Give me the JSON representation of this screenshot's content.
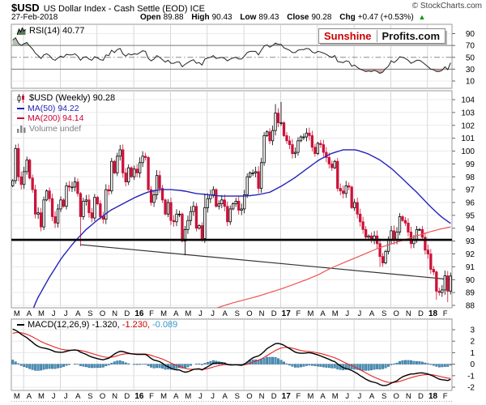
{
  "header": {
    "symbol": "$USD",
    "title": "US Dollar Index - Cash Settle (EOD) ICE",
    "copyright": "© StockCharts.com",
    "date": "27-Feb-2018",
    "open_label": "Open",
    "open": "89.88",
    "high_label": "High",
    "high": "90.43",
    "low_label": "Low",
    "low": "89.43",
    "close_label": "Close",
    "close": "90.28",
    "chg_label": "Chg",
    "chg": "+0.47 (+0.53%)",
    "up_arrow": "▲",
    "up_color": "#009900"
  },
  "logo": {
    "part1": "Sunshine",
    "part2": "Profits.com",
    "part1_color": "#cc0000"
  },
  "rsi_panel": {
    "label": "RSI(14) 40.77",
    "ticks": [
      90,
      70,
      50,
      30,
      10
    ]
  },
  "main_panel": {
    "legend": [
      {
        "label": "$USD (Weekly) 90.28",
        "color": "#000000",
        "icon": "candles"
      },
      {
        "label": "MA(50) 94.22",
        "color": "#2222bb",
        "icon": "dash"
      },
      {
        "label": "MA(200) 94.14",
        "color": "#cc0033",
        "icon": "dash"
      },
      {
        "label": "Volume undef",
        "color": "#808080",
        "icon": "bars"
      }
    ],
    "ticks": [
      104,
      103,
      102,
      101,
      100,
      99,
      98,
      97,
      96,
      95,
      94,
      93,
      92,
      91,
      90,
      89,
      88
    ]
  },
  "macd_panel": {
    "name": "MACD(12,26,9)",
    "values": [
      {
        "text": " -1.320,",
        "color": "#000000"
      },
      {
        "text": " -1.230,",
        "color": "#cc0000"
      },
      {
        "text": " -0.089",
        "color": "#3399cc"
      }
    ],
    "ticks": [
      3,
      2,
      1,
      0,
      -1,
      -2
    ]
  },
  "months": [
    "M",
    "A",
    "M",
    "J",
    "J",
    "A",
    "S",
    "O",
    "N",
    "D",
    "16",
    "F",
    "M",
    "A",
    "M",
    "J",
    "J",
    "A",
    "S",
    "O",
    "N",
    "D",
    "17",
    "F",
    "M",
    "A",
    "M",
    "J",
    "J",
    "A",
    "S",
    "O",
    "N",
    "D",
    "18",
    "F"
  ],
  "colors": {
    "candle_down": "#cc1239",
    "candle_up_fill": "#ffffff",
    "candle_up_stroke": "#000000",
    "ma50": "#2424bb",
    "ma200": "#ee5555",
    "support": "#000000",
    "trendline": "#333333",
    "rsi_line": "#222222",
    "rsi_fill_over": "#6f8f6f",
    "rsi_fill_under": "#b96a6a",
    "macd_line": "#000000",
    "macd_signal": "#e62222",
    "hist_fill": "#4e97bf",
    "hist_stroke": "#27638b",
    "grid": "#e4e4e4",
    "vgrid": "#cccccc",
    "band_line": "#777777",
    "mid_line": "#888888",
    "border": "#999999",
    "tick": "#666666"
  },
  "chart_data": [
    {
      "type": "line",
      "name": "RSI(14) weekly",
      "last": 40.77,
      "overbought": 70,
      "oversold": 30,
      "ylim": [
        10,
        90
      ],
      "values": [
        79,
        83,
        74,
        70,
        73,
        75,
        69,
        64,
        57,
        53,
        48,
        54,
        56,
        53,
        47,
        45,
        49,
        52,
        50,
        55,
        54,
        54,
        56,
        52,
        45,
        50,
        51,
        47,
        45,
        51,
        49,
        46,
        45,
        54,
        53,
        62,
        58,
        63,
        65,
        56,
        52,
        56,
        54,
        56,
        55,
        58,
        61,
        60,
        48,
        44,
        47,
        53,
        50,
        46,
        42,
        45,
        40,
        40,
        42,
        42,
        34,
        38,
        41,
        44,
        46,
        40,
        41,
        37,
        47,
        49,
        50,
        53,
        48,
        49,
        50,
        48,
        44,
        47,
        49,
        50,
        47,
        47,
        52,
        58,
        60,
        60,
        60,
        54,
        62,
        69,
        71,
        67,
        70,
        74,
        72,
        72,
        66,
        64,
        62,
        58,
        58,
        62,
        63,
        63,
        65,
        64,
        59,
        57,
        60,
        59,
        57,
        55,
        52,
        50,
        53,
        43,
        42,
        41,
        44,
        43,
        35,
        37,
        33,
        30,
        28,
        26,
        27,
        26,
        28,
        26,
        23,
        25,
        31,
        35,
        44,
        41,
        45,
        51,
        50,
        48,
        45,
        40,
        42,
        45,
        45,
        42,
        38,
        34,
        30,
        29,
        26,
        26,
        28,
        34,
        29,
        40.77
      ]
    },
    {
      "type": "candlestick",
      "name": "$USD US Dollar Index weekly",
      "last": 90.28,
      "ylim": [
        88,
        104
      ],
      "x_range": "Mar-2015 to Feb-2018",
      "first_open": 97.3,
      "closes": [
        97.7,
        100.2,
        98.0,
        97.4,
        98.4,
        99.3,
        97.9,
        97.0,
        95.1,
        95.2,
        94.1,
        96.2,
        96.9,
        96.3,
        94.9,
        94.4,
        95.5,
        96.2,
        95.7,
        97.3,
        97.2,
        97.2,
        97.6,
        96.7,
        94.9,
        96.1,
        96.2,
        95.2,
        94.8,
        96.4,
        95.9,
        94.9,
        94.7,
        97.0,
        96.9,
        99.2,
        98.3,
        99.6,
        100.1,
        98.3,
        97.6,
        98.7,
        98.0,
        98.6,
        98.3,
        99.1,
        99.6,
        99.5,
        97.0,
        96.0,
        96.6,
        98.1,
        97.1,
        96.2,
        95.1,
        96.0,
        94.6,
        94.5,
        95.1,
        95.1,
        93.0,
        93.9,
        94.6,
        95.3,
        95.7,
        94.0,
        94.2,
        93.2,
        95.6,
        96.3,
        96.6,
        97.0,
        95.7,
        95.9,
        96.2,
        95.7,
        94.5,
        95.5,
        95.9,
        96.1,
        95.4,
        95.5,
        96.6,
        98.0,
        98.3,
        98.3,
        98.4,
        97.1,
        99.1,
        101.2,
        101.5,
        100.8,
        101.6,
        102.95,
        102.2,
        102.2,
        101.2,
        100.8,
        100.5,
        99.8,
        99.9,
        100.8,
        101.1,
        101.1,
        101.4,
        101.2,
        100.3,
        99.8,
        100.6,
        100.5,
        99.9,
        99.5,
        99.0,
        98.7,
        99.2,
        97.1,
        96.9,
        96.7,
        97.3,
        97.2,
        95.6,
        96.0,
        95.1,
        94.5,
        93.9,
        93.3,
        93.4,
        93.1,
        93.4,
        92.8,
        91.8,
        91.3,
        92.2,
        93.1,
        93.8,
        93.1,
        93.7,
        94.9,
        94.6,
        94.4,
        93.7,
        92.8,
        93.1,
        93.9,
        93.9,
        93.3,
        92.3,
        92.0,
        90.8,
        90.6,
        89.1,
        89.0,
        89.2,
        90.3,
        89.1,
        90.28
      ],
      "wick_overrides": [
        {
          "i": 1,
          "high": 100.5
        },
        {
          "i": 24,
          "low": 92.6
        },
        {
          "i": 61,
          "low": 91.9
        },
        {
          "i": 68,
          "high": 96.7
        },
        {
          "i": 93,
          "high": 103.65
        },
        {
          "i": 95,
          "high": 103.82
        },
        {
          "i": 130,
          "low": 91.0
        },
        {
          "i": 131,
          "low": 91.0
        },
        {
          "i": 150,
          "low": 88.44
        },
        {
          "i": 154,
          "low": 88.25
        }
      ],
      "ma50_last": 94.22,
      "ma50_points": [
        [
          0.7,
          85.5
        ],
        [
          2,
          88.5
        ],
        [
          3,
          90.2
        ],
        [
          4,
          91.7
        ],
        [
          5,
          92.9
        ],
        [
          6,
          93.9
        ],
        [
          7,
          94.7
        ],
        [
          8,
          95.4
        ],
        [
          9,
          95.9
        ],
        [
          10,
          96.4
        ],
        [
          11,
          96.8
        ],
        [
          12,
          97.0
        ],
        [
          13,
          97.0
        ],
        [
          14,
          96.9
        ],
        [
          15,
          96.7
        ],
        [
          16,
          96.6
        ],
        [
          17,
          96.5
        ],
        [
          18,
          96.5
        ],
        [
          19,
          96.5
        ],
        [
          20,
          96.6
        ],
        [
          21,
          96.8
        ],
        [
          22,
          97.3
        ],
        [
          23,
          97.9
        ],
        [
          24,
          98.6
        ],
        [
          25,
          99.3
        ],
        [
          26,
          99.8
        ],
        [
          27,
          100.1
        ],
        [
          28,
          100.1
        ],
        [
          29,
          99.8
        ],
        [
          30,
          99.3
        ],
        [
          31,
          98.6
        ],
        [
          32,
          97.7
        ],
        [
          33,
          96.8
        ],
        [
          34,
          95.8
        ],
        [
          35,
          94.9
        ],
        [
          36,
          94.22
        ]
      ],
      "ma200_last": 94.14,
      "ma200_points": [
        [
          16,
          87.6
        ],
        [
          18,
          88.2
        ],
        [
          20,
          88.7
        ],
        [
          22,
          89.3
        ],
        [
          24,
          90.0
        ],
        [
          25,
          90.4
        ],
        [
          26,
          90.9
        ],
        [
          27,
          91.3
        ],
        [
          28,
          91.7
        ],
        [
          29,
          92.1
        ],
        [
          30,
          92.5
        ],
        [
          31,
          92.8
        ],
        [
          32,
          93.1
        ],
        [
          33,
          93.4
        ],
        [
          34,
          93.7
        ],
        [
          35,
          93.95
        ],
        [
          36,
          94.14
        ]
      ],
      "support_level": 93.1,
      "trendline": {
        "from_week": 24,
        "from_value": 92.72,
        "to_week": 155.5,
        "to_value": 90.0
      }
    },
    {
      "type": "line+histogram",
      "name": "MACD(12,26,9) weekly",
      "last_macd": -1.32,
      "last_signal": -1.23,
      "last_hist": -0.089,
      "ylim": [
        -2,
        3
      ],
      "signal_init": 2.6,
      "macd": [
        3.05,
        2.95,
        2.8,
        2.6,
        2.45,
        2.3,
        2.1,
        1.9,
        1.7,
        1.55,
        1.45,
        1.4,
        1.35,
        1.28,
        1.18,
        1.08,
        1.05,
        1.02,
        1.05,
        1.12,
        1.18,
        1.22,
        1.25,
        1.2,
        1.05,
        0.95,
        0.85,
        0.72,
        0.62,
        0.55,
        0.48,
        0.42,
        0.38,
        0.45,
        0.52,
        0.7,
        0.88,
        1.02,
        1.12,
        1.1,
        1.02,
        0.95,
        0.9,
        0.87,
        0.85,
        0.85,
        0.86,
        0.85,
        0.7,
        0.5,
        0.35,
        0.3,
        0.22,
        0.08,
        -0.12,
        -0.22,
        -0.35,
        -0.45,
        -0.5,
        -0.5,
        -0.62,
        -0.7,
        -0.66,
        -0.56,
        -0.45,
        -0.42,
        -0.4,
        -0.5,
        -0.35,
        -0.22,
        -0.08,
        0.08,
        0.1,
        0.1,
        0.1,
        0.08,
        -0.02,
        -0.06,
        -0.06,
        -0.05,
        -0.08,
        -0.1,
        0.0,
        0.18,
        0.38,
        0.55,
        0.65,
        0.72,
        0.88,
        1.1,
        1.35,
        1.5,
        1.65,
        1.78,
        1.8,
        1.75,
        1.65,
        1.5,
        1.35,
        1.2,
        1.05,
        0.98,
        0.95,
        0.95,
        0.98,
        1.0,
        0.95,
        0.88,
        0.8,
        0.72,
        0.62,
        0.52,
        0.42,
        0.3,
        0.22,
        0.02,
        -0.15,
        -0.3,
        -0.38,
        -0.45,
        -0.55,
        -0.68,
        -0.82,
        -1.0,
        -1.15,
        -1.3,
        -1.42,
        -1.52,
        -1.58,
        -1.65,
        -1.78,
        -1.85,
        -1.85,
        -1.78,
        -1.65,
        -1.55,
        -1.45,
        -1.25,
        -1.1,
        -1.0,
        -0.92,
        -0.85,
        -0.85,
        -0.8,
        -0.76,
        -0.75,
        -0.8,
        -0.85,
        -0.95,
        -1.05,
        -1.18,
        -1.3,
        -1.35,
        -1.38,
        -1.42,
        -1.32
      ]
    }
  ]
}
